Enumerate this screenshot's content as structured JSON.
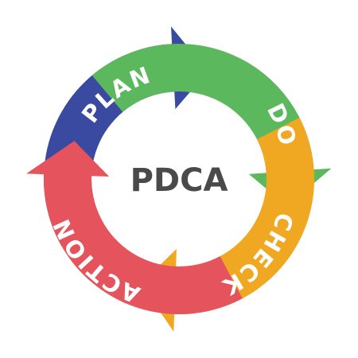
{
  "diagram": {
    "center_label": "PDCA",
    "segments": [
      {
        "label": "PLAN",
        "color": "#3a4aa0"
      },
      {
        "label": "DO",
        "color": "#5cb85c"
      },
      {
        "label": "CHECK",
        "color": "#f0a823"
      },
      {
        "label": "ACTION",
        "color": "#e5535c"
      }
    ]
  }
}
